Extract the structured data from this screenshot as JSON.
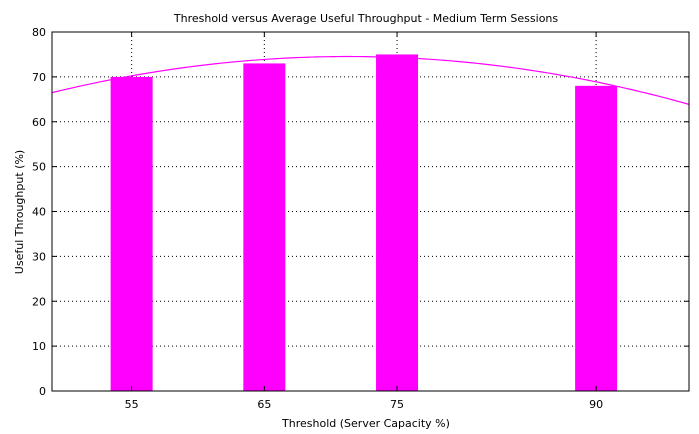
{
  "chart_data": {
    "type": "bar",
    "title": "Threshold versus Average Useful Throughput - Medium Term Sessions",
    "xlabel": "Threshold (Server Capacity %)",
    "ylabel": "Useful Throughput (%)",
    "x": [
      55,
      65,
      75,
      90
    ],
    "categories": [
      "55",
      "65",
      "75",
      "90"
    ],
    "values": [
      70,
      73,
      75,
      68
    ],
    "xlim": [
      49,
      97
    ],
    "ylim": [
      0,
      80
    ],
    "yticks": [
      0,
      10,
      20,
      30,
      40,
      50,
      60,
      70,
      80
    ],
    "yticklabels": [
      "0",
      "10",
      "20",
      "30",
      "40",
      "50",
      "60",
      "70",
      "80"
    ],
    "grid": true,
    "bar_color": "#ff00ff",
    "trend_curve": {
      "type": "quadratic-fit",
      "color": "#ff00ff",
      "points": [
        [
          49,
          66.2
        ],
        [
          55,
          70.6
        ],
        [
          65,
          73.9
        ],
        [
          75,
          74.4
        ],
        [
          85,
          71.3
        ],
        [
          90,
          68.7
        ],
        [
          97,
          64.1
        ]
      ]
    }
  }
}
